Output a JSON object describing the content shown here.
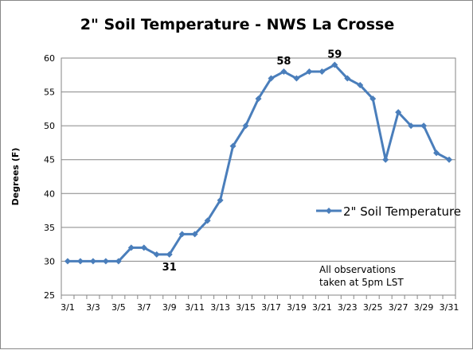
{
  "chart_data": {
    "type": "line",
    "title": "2\" Soil Temperature - NWS La Crosse",
    "xlabel": "",
    "ylabel": "Degrees (F)",
    "ylim": [
      25,
      60
    ],
    "ytick_step": 5,
    "grid": "horizontal",
    "legend_position": "right",
    "x_tick_labels": [
      "3/1",
      "3/3",
      "3/5",
      "3/7",
      "3/9",
      "3/11",
      "3/13",
      "3/15",
      "3/17",
      "3/19",
      "3/21",
      "3/23",
      "3/25",
      "3/27",
      "3/29",
      "3/31"
    ],
    "series": [
      {
        "name": "2\" Soil Temperature",
        "color": "#4a7ebb",
        "x": [
          "3/1",
          "3/2",
          "3/3",
          "3/4",
          "3/5",
          "3/6",
          "3/7",
          "3/8",
          "3/9",
          "3/10",
          "3/11",
          "3/12",
          "3/13",
          "3/14",
          "3/15",
          "3/16",
          "3/17",
          "3/18",
          "3/19",
          "3/20",
          "3/21",
          "3/22",
          "3/23",
          "3/24",
          "3/25",
          "3/26",
          "3/27",
          "3/28",
          "3/29",
          "3/30",
          "3/31"
        ],
        "values": [
          30,
          30,
          30,
          30,
          30,
          32,
          32,
          31,
          31,
          34,
          34,
          36,
          39,
          47,
          50,
          54,
          57,
          58,
          57,
          58,
          58,
          59,
          57,
          56,
          54,
          45,
          52,
          50,
          50,
          46,
          45
        ]
      }
    ],
    "data_labels": [
      {
        "x": "3/9",
        "text": "31",
        "position": "below"
      },
      {
        "x": "3/18",
        "text": "58",
        "position": "above"
      },
      {
        "x": "3/22",
        "text": "59",
        "position": "above"
      }
    ],
    "annotations": [
      "All observations",
      "taken at 5pm LST"
    ]
  }
}
